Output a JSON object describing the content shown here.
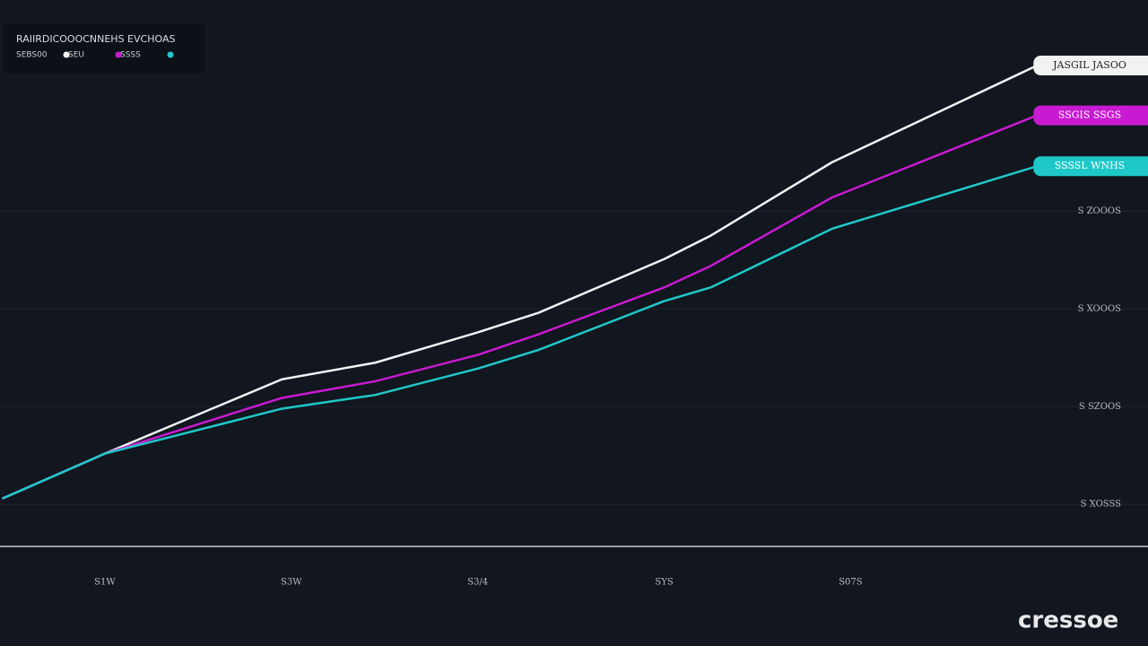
{
  "chart_data": {
    "type": "line",
    "title": "RAIIRDICOOOCNNEHS EVCHOAS",
    "x": [
      -0.1,
      1,
      2.9,
      3.9,
      5,
      5.65,
      7,
      7.5,
      8.8,
      11
    ],
    "xlim": [
      -0.125,
      12.19
    ],
    "xticks": [
      {
        "value": 1,
        "label": "S1W"
      },
      {
        "value": 3,
        "label": "S3W"
      },
      {
        "value": 5,
        "label": "S3/4"
      },
      {
        "value": 7,
        "label": "SYS"
      },
      {
        "value": 9,
        "label": "S07S"
      }
    ],
    "ylim": [
      58,
      616
    ],
    "yticks": [
      {
        "value": 100,
        "label": "S XOSSS"
      },
      {
        "value": 200,
        "label": "S SZOOS"
      },
      {
        "value": 300,
        "label": "S XOOOS"
      },
      {
        "value": 400,
        "label": "S ZOOOS"
      }
    ],
    "grid": true,
    "series": [
      {
        "name": "SEBS00",
        "color": "#f2f2f2",
        "end_label": "JASGIL JASOO",
        "values": [
          106,
          152,
          228,
          245,
          276,
          296,
          351,
          375,
          450,
          549
        ]
      },
      {
        "name": "SEU",
        "color": "#c81ad0",
        "end_label": "SSGIS SSGS",
        "values": [
          106,
          152,
          209,
          226,
          253,
          274,
          322,
          344,
          414,
          498
        ]
      },
      {
        "name": "SSSS",
        "color": "#1fc8c8",
        "end_label": "SSSSL WNHS",
        "values": [
          106,
          152,
          198,
          212,
          239,
          258,
          308,
          322,
          382,
          446
        ]
      }
    ],
    "watermark": "cressoe"
  }
}
